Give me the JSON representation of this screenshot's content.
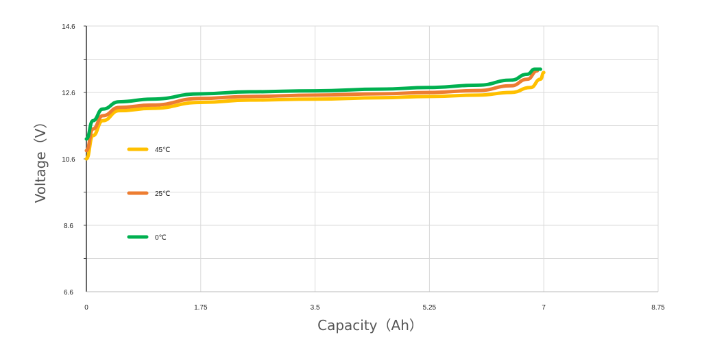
{
  "chart_data": {
    "type": "line",
    "title": "",
    "xlabel": "Capacity（Ah）",
    "ylabel": "Voltage（V）",
    "xlim": [
      0,
      8.75
    ],
    "ylim": [
      6.6,
      14.6
    ],
    "x_ticks": [
      "0",
      "1.75",
      "3.5",
      "5.25",
      "7",
      "8.75"
    ],
    "y_ticks": [
      "6.6",
      "8.6",
      "10.6",
      "12.6",
      "14.6"
    ],
    "grid": true,
    "legend_placement": "left-inside",
    "series": [
      {
        "name": "45℃",
        "color": "#FFC000",
        "x": [
          0,
          0.1,
          0.25,
          0.5,
          1.0,
          1.75,
          2.5,
          3.5,
          4.5,
          5.25,
          6.0,
          6.5,
          6.8,
          6.95,
          7.0
        ],
        "y": [
          10.6,
          11.3,
          11.75,
          12.05,
          12.12,
          12.3,
          12.37,
          12.4,
          12.44,
          12.48,
          12.52,
          12.6,
          12.75,
          13.0,
          13.2
        ]
      },
      {
        "name": "25℃",
        "color": "#ED7D31",
        "x": [
          0,
          0.1,
          0.25,
          0.5,
          1.0,
          1.75,
          2.5,
          3.5,
          4.5,
          5.25,
          6.0,
          6.5,
          6.75,
          6.9
        ],
        "y": [
          10.85,
          11.5,
          11.9,
          12.15,
          12.22,
          12.42,
          12.48,
          12.52,
          12.56,
          12.6,
          12.66,
          12.8,
          13.0,
          13.25
        ]
      },
      {
        "name": "0℃",
        "color": "#00B050",
        "x": [
          0,
          0.1,
          0.25,
          0.5,
          1.0,
          1.75,
          2.5,
          3.5,
          4.5,
          5.25,
          6.0,
          6.5,
          6.75,
          6.86,
          6.95
        ],
        "y": [
          11.2,
          11.75,
          12.1,
          12.32,
          12.4,
          12.56,
          12.62,
          12.65,
          12.7,
          12.75,
          12.82,
          12.97,
          13.15,
          13.3,
          13.3
        ]
      }
    ]
  }
}
